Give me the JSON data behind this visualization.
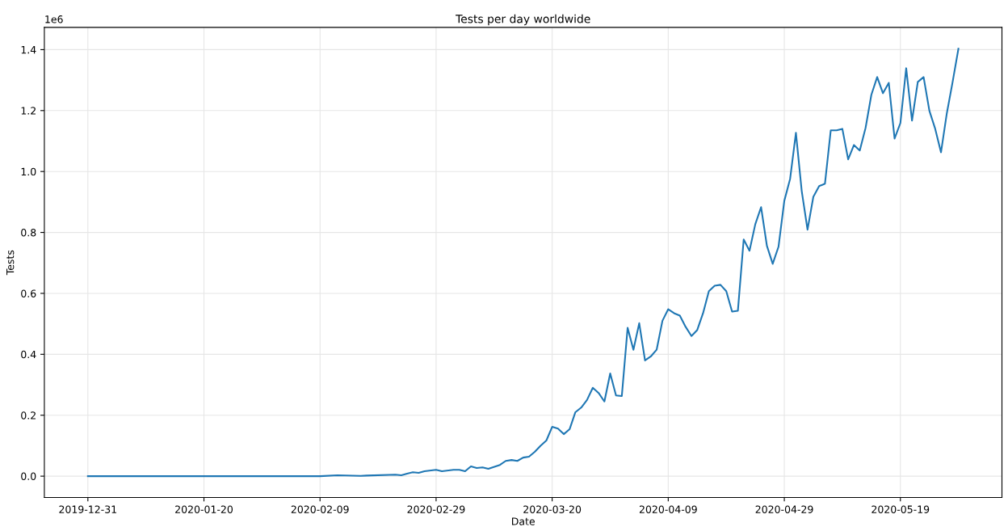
{
  "chart_data": {
    "type": "line",
    "title": "Tests per day worldwide",
    "xlabel": "Date",
    "ylabel": "Tests",
    "annotations": [
      "1e6"
    ],
    "x": [
      "2019-12-31",
      "2020-01-20",
      "2020-02-09",
      "2020-02-12",
      "2020-02-16",
      "2020-02-17",
      "2020-02-22",
      "2020-02-23",
      "2020-02-24",
      "2020-02-25",
      "2020-02-26",
      "2020-02-27",
      "2020-02-29",
      "2020-03-01",
      "2020-03-03",
      "2020-03-04",
      "2020-03-05",
      "2020-03-06",
      "2020-03-07",
      "2020-03-08",
      "2020-03-09",
      "2020-03-11",
      "2020-03-12",
      "2020-03-13",
      "2020-03-14",
      "2020-03-15",
      "2020-03-16",
      "2020-03-17",
      "2020-03-18",
      "2020-03-19",
      "2020-03-20",
      "2020-03-21",
      "2020-03-22",
      "2020-03-23",
      "2020-03-24",
      "2020-03-25",
      "2020-03-26",
      "2020-03-27",
      "2020-03-28",
      "2020-03-29",
      "2020-03-30",
      "2020-03-31",
      "2020-04-01",
      "2020-04-02",
      "2020-04-03",
      "2020-04-04",
      "2020-04-05",
      "2020-04-06",
      "2020-04-07",
      "2020-04-08",
      "2020-04-09",
      "2020-04-10",
      "2020-04-11",
      "2020-04-12",
      "2020-04-13",
      "2020-04-14",
      "2020-04-15",
      "2020-04-16",
      "2020-04-17",
      "2020-04-18",
      "2020-04-19",
      "2020-04-20",
      "2020-04-21",
      "2020-04-22",
      "2020-04-23",
      "2020-04-24",
      "2020-04-25",
      "2020-04-26",
      "2020-04-27",
      "2020-04-28",
      "2020-04-29",
      "2020-04-30",
      "2020-05-01",
      "2020-05-02",
      "2020-05-03",
      "2020-05-04",
      "2020-05-05",
      "2020-05-06",
      "2020-05-07",
      "2020-05-08",
      "2020-05-09",
      "2020-05-10",
      "2020-05-11",
      "2020-05-12",
      "2020-05-13",
      "2020-05-14",
      "2020-05-15",
      "2020-05-16",
      "2020-05-17",
      "2020-05-18",
      "2020-05-19",
      "2020-05-20",
      "2020-05-21",
      "2020-05-22",
      "2020-05-23",
      "2020-05-24",
      "2020-05-25",
      "2020-05-26",
      "2020-05-27",
      "2020-05-28",
      "2020-05-29"
    ],
    "series": [
      {
        "color": "#1f77b4",
        "values": [
          0,
          0,
          0,
          0.003,
          0.001,
          0.002,
          0.005,
          0.003,
          0.008,
          0.013,
          0.011,
          0.016,
          0.021,
          0.016,
          0.021,
          0.021,
          0.016,
          0.032,
          0.027,
          0.029,
          0.024,
          0.037,
          0.05,
          0.053,
          0.05,
          0.061,
          0.064,
          0.08,
          0.1,
          0.117,
          0.162,
          0.156,
          0.138,
          0.154,
          0.21,
          0.225,
          0.25,
          0.29,
          0.273,
          0.245,
          0.337,
          0.265,
          0.263,
          0.487,
          0.415,
          0.502,
          0.38,
          0.393,
          0.415,
          0.51,
          0.548,
          0.535,
          0.527,
          0.49,
          0.46,
          0.48,
          0.535,
          0.607,
          0.625,
          0.628,
          0.607,
          0.54,
          0.543,
          0.777,
          0.74,
          0.827,
          0.883,
          0.756,
          0.697,
          0.753,
          0.904,
          0.976,
          1.127,
          0.936,
          0.809,
          0.917,
          0.952,
          0.96,
          1.135,
          1.135,
          1.14,
          1.04,
          1.087,
          1.069,
          1.143,
          1.252,
          1.31,
          1.257,
          1.291,
          1.108,
          1.159,
          1.339,
          1.167,
          1.294,
          1.31,
          1.199,
          1.14,
          1.063,
          1.191,
          1.294,
          1.403
        ]
      }
    ],
    "xlim": [
      "2019-12-23T12:00",
      "2020-06-05T12:00"
    ],
    "xticks": [
      "2019-12-31",
      "2020-01-20",
      "2020-02-09",
      "2020-02-29",
      "2020-03-20",
      "2020-04-09",
      "2020-04-29",
      "2020-05-19"
    ],
    "ylim": [
      -0.07,
      1.473
    ],
    "yticks": [
      {
        "value": 0,
        "label": "0.0"
      },
      0.2,
      0.4,
      0.6,
      0.8,
      {
        "value": 1,
        "label": "1.0"
      },
      1.2,
      1.4
    ],
    "grid": true,
    "line_style": "solid",
    "marker": "none"
  }
}
